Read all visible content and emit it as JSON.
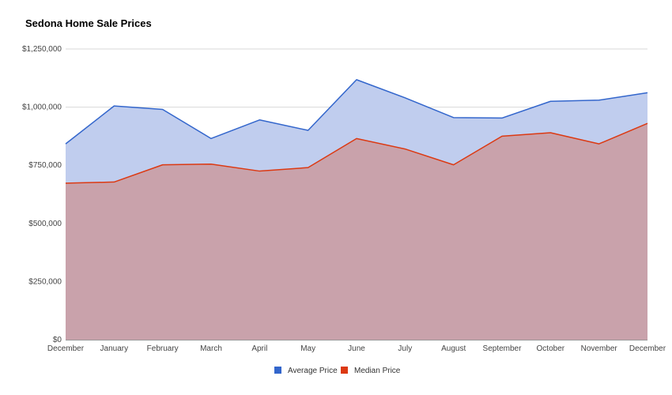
{
  "chart_data": {
    "type": "area",
    "title": "Sedona Home Sale Prices",
    "xlabel": "",
    "ylabel": "",
    "categories": [
      "December",
      "January",
      "February",
      "March",
      "April",
      "May",
      "June",
      "July",
      "August",
      "September",
      "October",
      "November",
      "December"
    ],
    "ylim": [
      0,
      1250000
    ],
    "yticks": [
      0,
      250000,
      500000,
      750000,
      1000000,
      1250000
    ],
    "ytick_labels": [
      "$0",
      "$250,000",
      "$500,000",
      "$750,000",
      "$1,000,000",
      "$1,250,000"
    ],
    "grid": true,
    "legend_position": "bottom",
    "series": [
      {
        "name": "Average Price",
        "color": "#3366cc",
        "fill": "#c0cdee",
        "values": [
          842000,
          1005000,
          990000,
          865000,
          945000,
          900000,
          1118000,
          1040000,
          955000,
          953000,
          1025000,
          1030000,
          1062000
        ]
      },
      {
        "name": "Median Price",
        "color": "#dc3912",
        "fill": "#c9a2ab",
        "values": [
          673000,
          678000,
          752000,
          755000,
          725000,
          740000,
          865000,
          820000,
          752000,
          875000,
          890000,
          842000,
          930000
        ]
      }
    ]
  }
}
